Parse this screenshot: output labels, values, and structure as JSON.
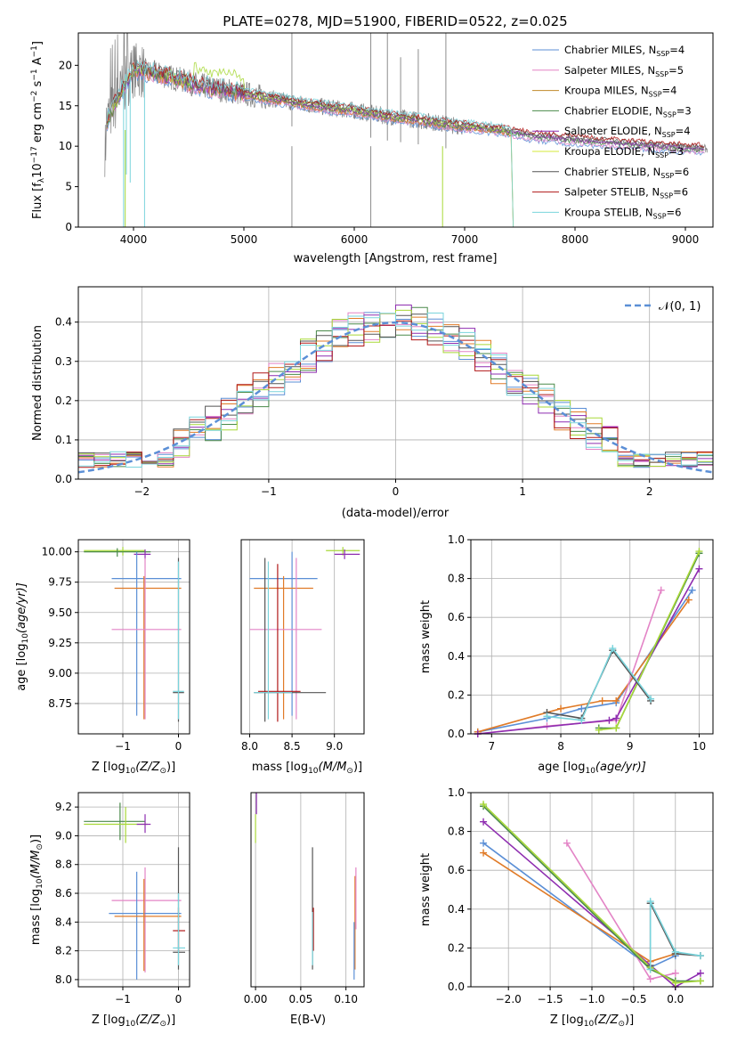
{
  "title": "PLATE=0278, MJD=51900, FIBERID=0522, z=0.025",
  "colors": {
    "chabrier_miles": "#5b8fd6",
    "salpeter_miles": "#e384c6",
    "kroupa_miles": "#c08a2a",
    "chabrier_elodie": "#4a8a4a",
    "salpeter_elodie": "#8e2db0",
    "kroupa_elodie": "#d4e83a",
    "chabrier_stelib": "#555555",
    "salpeter_stelib": "#b01818",
    "kroupa_stelib": "#7ad4dc",
    "data": "#808080",
    "orange": "#e07b28",
    "lime": "#a8d838",
    "normal": "#5b8fd6"
  },
  "chart_data": [
    {
      "type": "line",
      "name": "spectrum",
      "xlabel": "wavelength [Angstrom, rest frame]",
      "ylabel": "Flux [f",
      "ylabel_sub": "λ",
      "ylabel_rest": "10",
      "ylabel_exp": "−17",
      "ylabel_unit": " erg cm",
      "ylabel_unit_exp": "−2",
      "ylabel_s": " s",
      "ylabel_s_exp": "−1",
      "ylabel_a": " A",
      "ylabel_a_exp": "−1",
      "ylabel_end": "]",
      "xlim": [
        3500,
        9250
      ],
      "ylim": [
        0,
        24
      ],
      "xticks": [
        "4000",
        "5000",
        "6000",
        "7000",
        "8000",
        "9000"
      ],
      "yticks": [
        "0",
        "5",
        "10",
        "15",
        "20"
      ],
      "legend": [
        {
          "label": "Chabrier MILES, N",
          "sub": "SSP",
          "val": "=4",
          "color": "#5b8fd6"
        },
        {
          "label": "Salpeter MILES, N",
          "sub": "SSP",
          "val": "=5",
          "color": "#e384c6"
        },
        {
          "label": "Kroupa MILES, N",
          "sub": "SSP",
          "val": "=4",
          "color": "#c08a2a"
        },
        {
          "label": "Chabrier ELODIE, N",
          "sub": "SSP",
          "val": "=3",
          "color": "#4a8a4a"
        },
        {
          "label": "Salpeter ELODIE, N",
          "sub": "SSP",
          "val": "=4",
          "color": "#8e2db0"
        },
        {
          "label": "Kroupa ELODIE, N",
          "sub": "SSP",
          "val": "=3",
          "color": "#d4e83a"
        },
        {
          "label": "Chabrier STELIB, N",
          "sub": "SSP",
          "val": "=6",
          "color": "#555555"
        },
        {
          "label": "Salpeter STELIB, N",
          "sub": "SSP",
          "val": "=6",
          "color": "#b01818"
        },
        {
          "label": "Kroupa STELIB, N",
          "sub": "SSP",
          "val": "=6",
          "color": "#7ad4dc"
        }
      ],
      "continuum": {
        "x": [
          3750,
          3900,
          4000,
          4200,
          4400,
          4600,
          4800,
          5000,
          5200,
          5500,
          5800,
          6000,
          6300,
          6600,
          6900,
          7200,
          7400,
          7600,
          8000,
          8500,
          9000,
          9200
        ],
        "y": [
          13,
          17,
          19.5,
          19,
          18.3,
          17.5,
          17,
          16.5,
          16,
          15.3,
          14.7,
          14.4,
          13.7,
          13.2,
          12.6,
          12.2,
          11.8,
          11.3,
          10.8,
          10.3,
          9.8,
          9.7
        ]
      }
    },
    {
      "type": "step",
      "name": "residuals",
      "xlabel": "(data-model)/error",
      "ylabel": "Normed distribution",
      "xlim": [
        -2.5,
        2.5
      ],
      "ylim": [
        0,
        0.49
      ],
      "xticks": [
        "−2",
        "−1",
        "0",
        "1",
        "2"
      ],
      "yticks": [
        "0.0",
        "0.1",
        "0.2",
        "0.3",
        "0.4"
      ],
      "legend": "𝒩(0, 1)"
    },
    {
      "type": "scatter",
      "name": "age-vs-Z",
      "xlabel": "Z [log",
      "xlabel_sub": "10",
      "xlabel_rest": "(Z/Z",
      "xlabel_sun": "⊙",
      "xlabel_end": ")]",
      "ylabel": "age  [log",
      "ylabel_sub": "10",
      "ylabel_rest": "(age/yr)]",
      "xlim": [
        -1.8,
        0.2
      ],
      "ylim": [
        8.5,
        10.1
      ],
      "xticks": [
        "−1",
        "0"
      ],
      "yticks": [
        "8.75",
        "9.00",
        "9.25",
        "9.50",
        "9.75",
        "10.00"
      ]
    },
    {
      "type": "scatter",
      "name": "age-vs-mass",
      "xlabel": "mass [log",
      "xlabel_sub": "10",
      "xlabel_rest": "(M/M",
      "xlabel_sun": "⊙",
      "xlabel_end": ")]",
      "xlim": [
        7.9,
        9.35
      ],
      "ylim": [
        8.5,
        10.1
      ],
      "xticks": [
        "8.0",
        "8.5",
        "9.0"
      ],
      "yticks": [
        "8.75",
        "9.00",
        "9.25",
        "9.50",
        "9.75",
        "10.00"
      ]
    },
    {
      "type": "line",
      "name": "weight-vs-age",
      "xlabel": "age  [log",
      "xlabel_sub": "10",
      "xlabel_rest": "(age/yr)]",
      "ylabel": "mass weight",
      "xlim": [
        6.7,
        10.2
      ],
      "ylim": [
        0,
        1
      ],
      "xticks": [
        "7",
        "8",
        "9",
        "10"
      ],
      "yticks": [
        "0.0",
        "0.2",
        "0.4",
        "0.6",
        "0.8",
        "1.0"
      ],
      "series": [
        {
          "color": "#5b8fd6",
          "x": [
            6.8,
            7.8,
            8.3,
            8.8,
            9.9
          ],
          "y": [
            0.01,
            0.08,
            0.13,
            0.16,
            0.74
          ]
        },
        {
          "color": "#e07b28",
          "x": [
            6.8,
            8.0,
            8.6,
            8.8,
            9.85
          ],
          "y": [
            0.01,
            0.13,
            0.17,
            0.17,
            0.69
          ]
        },
        {
          "color": "#e384c6",
          "x": [
            6.8,
            7.8,
            8.8,
            9.45
          ],
          "y": [
            0.0,
            0.04,
            0.07,
            0.74
          ]
        },
        {
          "color": "#8e2db0",
          "x": [
            6.8,
            8.7,
            8.8,
            10.0
          ],
          "y": [
            0.0,
            0.07,
            0.08,
            0.85
          ]
        },
        {
          "color": "#4a8a4a",
          "x": [
            8.55,
            8.8,
            10.0
          ],
          "y": [
            0.03,
            0.03,
            0.93
          ]
        },
        {
          "color": "#a8d838",
          "x": [
            8.55,
            8.8,
            10.0
          ],
          "y": [
            0.02,
            0.03,
            0.94
          ]
        },
        {
          "color": "#555555",
          "x": [
            7.8,
            8.3,
            8.75,
            9.3
          ],
          "y": [
            0.11,
            0.08,
            0.43,
            0.17
          ]
        },
        {
          "color": "#7ad4dc",
          "x": [
            7.8,
            8.3,
            8.75,
            9.3
          ],
          "y": [
            0.09,
            0.07,
            0.44,
            0.18
          ]
        }
      ]
    },
    {
      "type": "scatter",
      "name": "mass-vs-Z",
      "xlabel": "Z [log",
      "xlabel_sub": "10",
      "xlabel_rest": "(Z/Z",
      "xlabel_sun": "⊙",
      "xlabel_end": ")]",
      "ylabel": "mass [log",
      "ylabel_sub": "10",
      "ylabel_rest": "(M/M",
      "ylabel_sun": "⊙",
      "ylabel_end": ")]",
      "xlim": [
        -1.8,
        0.2
      ],
      "ylim": [
        7.95,
        9.3
      ],
      "xticks": [
        "−1",
        "0"
      ],
      "yticks": [
        "8.0",
        "8.2",
        "8.4",
        "8.6",
        "8.8",
        "9.0",
        "9.2"
      ]
    },
    {
      "type": "scatter",
      "name": "mass-vs-EBV",
      "xlabel": "E(B-V)",
      "xlim": [
        -0.005,
        0.12
      ],
      "ylim": [
        7.95,
        9.3
      ],
      "xticks": [
        "0.00",
        "0.05",
        "0.10"
      ],
      "yticks": [
        "8.0",
        "8.2",
        "8.4",
        "8.6",
        "8.8",
        "9.0",
        "9.2"
      ]
    },
    {
      "type": "line",
      "name": "weight-vs-Z",
      "xlabel": "Z [log",
      "xlabel_sub": "10",
      "xlabel_rest": "(Z/Z",
      "xlabel_sun": "⊙",
      "xlabel_end": ")]",
      "ylabel": "mass weight",
      "xlim": [
        -2.45,
        0.45
      ],
      "ylim": [
        0,
        1
      ],
      "xticks": [
        "−2.0",
        "−1.5",
        "−1.0",
        "−0.5",
        "0.0"
      ],
      "yticks": [
        "0.0",
        "0.2",
        "0.4",
        "0.6",
        "0.8",
        "1.0"
      ],
      "series": [
        {
          "color": "#5b8fd6",
          "x": [
            -2.3,
            -0.3,
            0.0
          ],
          "y": [
            0.74,
            0.1,
            0.16
          ]
        },
        {
          "color": "#e07b28",
          "x": [
            -2.3,
            -0.3,
            0.0
          ],
          "y": [
            0.69,
            0.13,
            0.17
          ]
        },
        {
          "color": "#e384c6",
          "x": [
            -1.3,
            -0.3,
            0.0
          ],
          "y": [
            0.74,
            0.04,
            0.07
          ]
        },
        {
          "color": "#8e2db0",
          "x": [
            -2.3,
            0.0,
            0.3
          ],
          "y": [
            0.85,
            0.0,
            0.07
          ]
        },
        {
          "color": "#4a8a4a",
          "x": [
            -2.3,
            -0.3,
            0.0,
            0.3
          ],
          "y": [
            0.93,
            0.09,
            0.03,
            0.03
          ]
        },
        {
          "color": "#a8d838",
          "x": [
            -2.3,
            -0.3,
            0.0,
            0.3
          ],
          "y": [
            0.94,
            0.1,
            0.02,
            0.03
          ]
        },
        {
          "color": "#555555",
          "x": [
            -0.3,
            -0.3,
            0.0,
            0.3
          ],
          "y": [
            0.11,
            0.43,
            0.17,
            0.16
          ]
        },
        {
          "color": "#7ad4dc",
          "x": [
            -0.3,
            -0.3,
            0.0,
            0.3
          ],
          "y": [
            0.09,
            0.44,
            0.18,
            0.16
          ]
        }
      ]
    }
  ]
}
